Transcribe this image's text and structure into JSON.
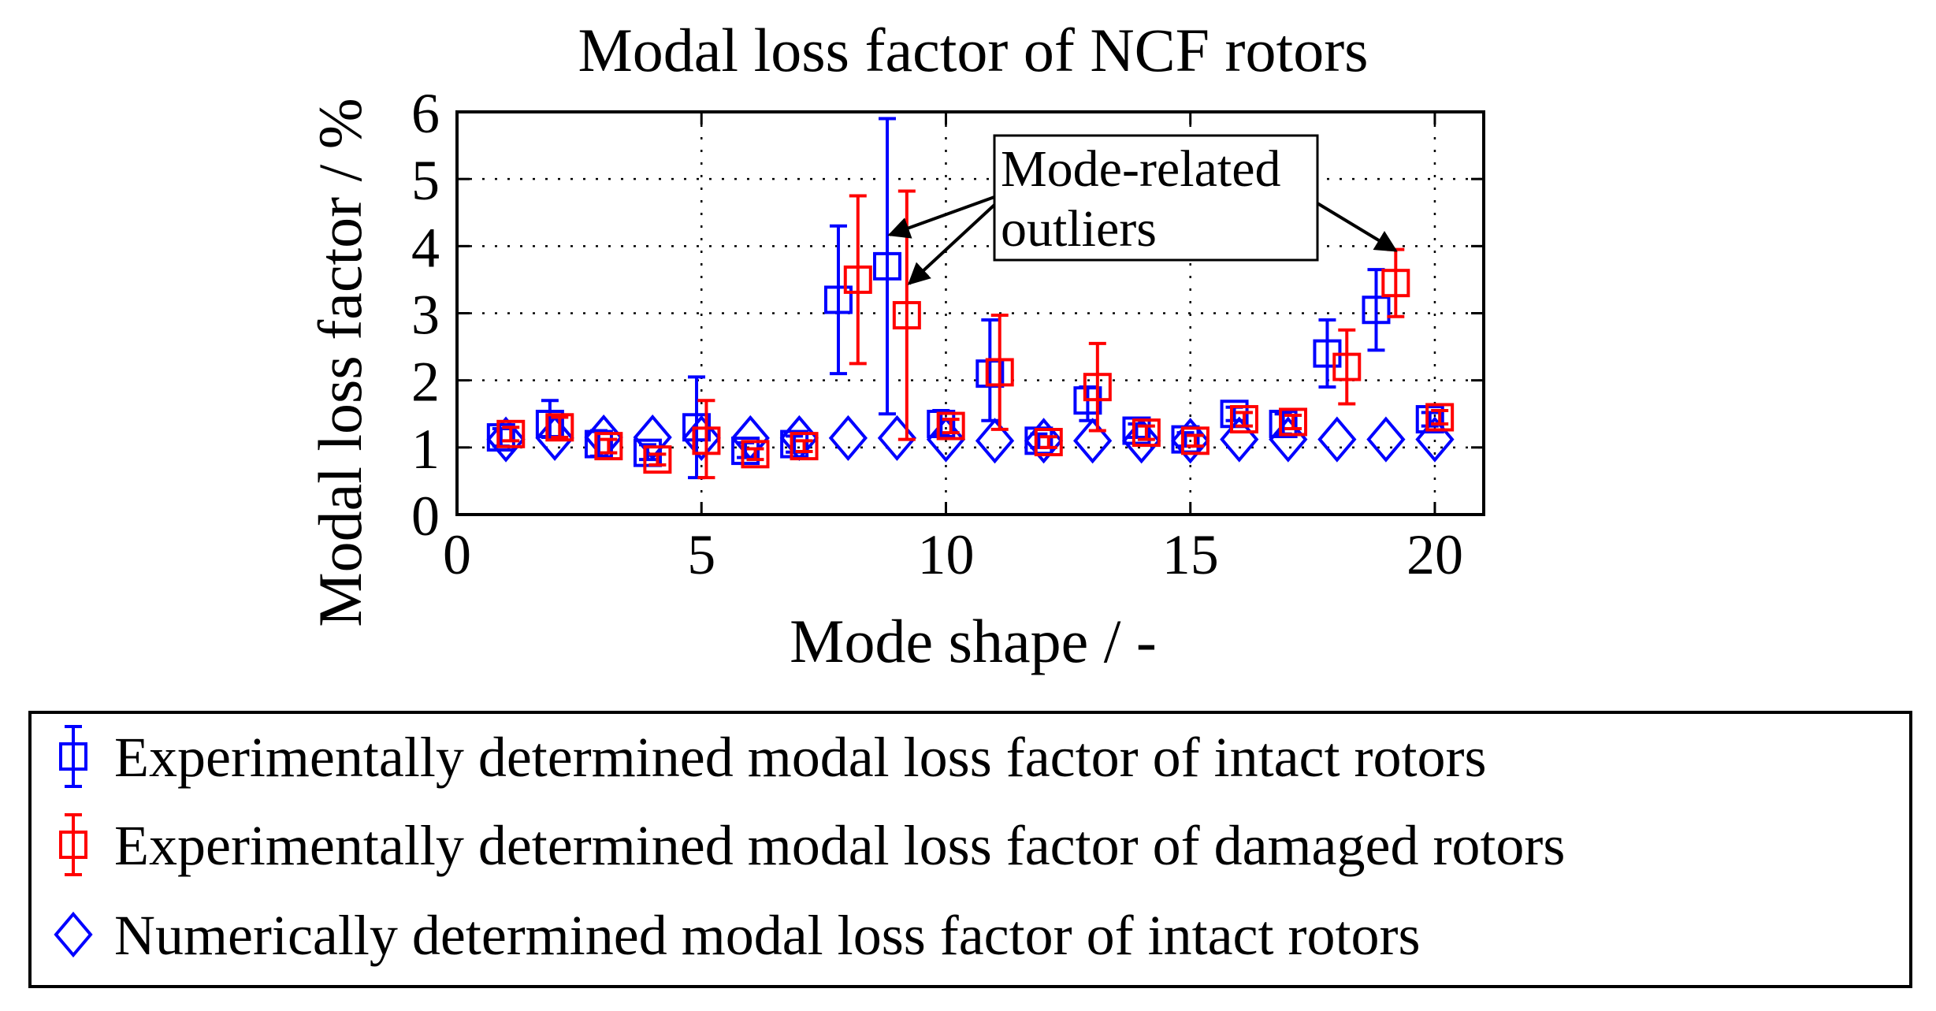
{
  "chart_data": {
    "type": "scatter",
    "title": "Modal loss factor of NCF rotors",
    "xlabel": "Mode shape / -",
    "ylabel": "Modal loss factor / %",
    "xlim": [
      0,
      21
    ],
    "ylim": [
      0,
      6
    ],
    "xticks": [
      0,
      5,
      10,
      15,
      20
    ],
    "yticks": [
      0,
      1,
      2,
      3,
      4,
      5,
      6
    ],
    "grid": true,
    "legend_position": "bottom",
    "annotation": {
      "lines": [
        "Mode-related",
        "outliers"
      ]
    },
    "series": [
      {
        "name": "Experimentally determined modal loss factor of intact rotors",
        "color": "#0000ff",
        "marker": "square",
        "errorbars": true,
        "x": [
          0.9,
          1.9,
          2.9,
          3.9,
          4.9,
          5.9,
          6.9,
          7.8,
          8.8,
          9.9,
          10.9,
          11.9,
          12.9,
          13.9,
          14.9,
          15.9,
          16.9,
          17.8,
          18.8,
          19.9
        ],
        "y": [
          1.15,
          1.35,
          1.05,
          0.92,
          1.3,
          0.95,
          1.05,
          3.2,
          3.7,
          1.35,
          2.1,
          1.1,
          1.7,
          1.25,
          1.12,
          1.5,
          1.35,
          2.4,
          3.05,
          1.42
        ],
        "err_low": [
          0.13,
          0.2,
          0.18,
          0.1,
          0.75,
          0.1,
          0.12,
          1.1,
          2.2,
          0.15,
          0.7,
          0.1,
          0.3,
          0.1,
          0.1,
          0.1,
          0.15,
          0.5,
          0.6,
          0.1
        ],
        "err_high": [
          0.13,
          0.35,
          0.2,
          0.12,
          0.75,
          0.12,
          0.12,
          1.1,
          2.2,
          0.2,
          0.8,
          0.1,
          0.2,
          0.1,
          0.1,
          0.1,
          0.15,
          0.5,
          0.6,
          0.1
        ]
      },
      {
        "name": "Experimentally determined modal loss factor of damaged rotors",
        "color": "#ff0000",
        "marker": "square",
        "errorbars": true,
        "x": [
          1.1,
          2.1,
          3.1,
          4.1,
          5.1,
          6.1,
          7.1,
          8.2,
          9.2,
          10.1,
          11.1,
          12.1,
          13.1,
          14.1,
          15.1,
          16.1,
          17.1,
          18.2,
          19.2,
          20.1
        ],
        "y": [
          1.2,
          1.3,
          1.02,
          0.82,
          1.1,
          0.9,
          1.02,
          3.5,
          2.97,
          1.32,
          2.12,
          1.08,
          1.9,
          1.22,
          1.1,
          1.42,
          1.38,
          2.2,
          3.45,
          1.45
        ],
        "err_low": [
          0.1,
          0.15,
          0.1,
          0.08,
          0.55,
          0.08,
          0.08,
          1.25,
          1.85,
          0.1,
          0.85,
          0.08,
          0.65,
          0.1,
          0.08,
          0.1,
          0.1,
          0.55,
          0.5,
          0.1
        ],
        "err_high": [
          0.1,
          0.15,
          0.1,
          0.08,
          0.6,
          0.08,
          0.08,
          1.25,
          1.85,
          0.1,
          0.85,
          0.08,
          0.65,
          0.1,
          0.08,
          0.1,
          0.1,
          0.55,
          0.5,
          0.1
        ]
      },
      {
        "name": "Numerically determined modal loss factor of intact rotors",
        "color": "#0000ff",
        "marker": "diamond",
        "errorbars": false,
        "x": [
          1,
          2,
          3,
          4,
          5,
          6,
          7,
          8,
          9,
          10,
          11,
          12,
          13,
          14,
          15,
          16,
          17,
          18,
          19,
          20
        ],
        "y": [
          1.12,
          1.14,
          1.15,
          1.15,
          1.14,
          1.14,
          1.14,
          1.14,
          1.14,
          1.12,
          1.1,
          1.1,
          1.1,
          1.1,
          1.1,
          1.12,
          1.12,
          1.12,
          1.12,
          1.12
        ]
      }
    ]
  }
}
